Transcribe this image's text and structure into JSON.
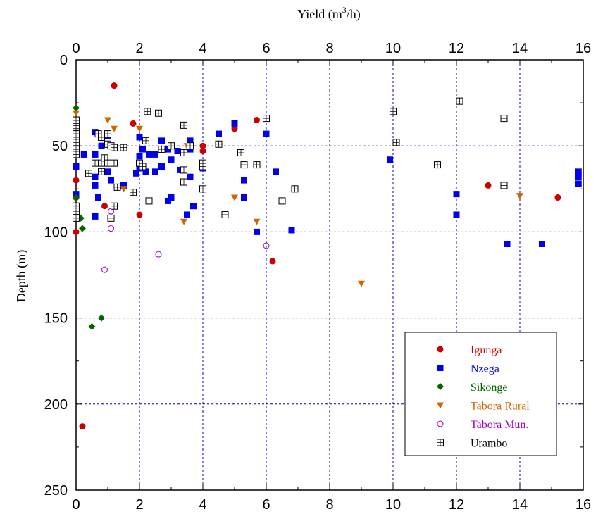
{
  "chart_data": {
    "type": "scatter",
    "title": "",
    "xlabel": "Yield (m",
    "xlabel_sup": "3",
    "xlabel_end": "/h)",
    "ylabel": "Depth (m)",
    "xlim": [
      0,
      16
    ],
    "ylim": [
      0,
      250
    ],
    "y_inverted": true,
    "x_ticks": [
      "0",
      "2",
      "4",
      "6",
      "8",
      "10",
      "12",
      "14",
      "16"
    ],
    "y_ticks": [
      "0",
      "50",
      "100",
      "150",
      "200",
      "250"
    ],
    "grid": true,
    "legend_position": "bottom-right",
    "series": [
      {
        "name": "Igunga",
        "color": "#cc0000",
        "marker": "circle-filled",
        "points": [
          [
            1.2,
            15
          ],
          [
            1.8,
            37
          ],
          [
            4,
            50
          ],
          [
            4,
            53
          ],
          [
            5,
            40
          ],
          [
            5.7,
            35
          ],
          [
            0,
            70
          ],
          [
            0,
            80
          ],
          [
            0,
            100
          ],
          [
            0.9,
            85
          ],
          [
            2,
            90
          ],
          [
            6.2,
            117
          ],
          [
            13,
            73
          ],
          [
            15.2,
            80
          ],
          [
            0.2,
            213
          ]
        ]
      },
      {
        "name": "Nzega",
        "color": "#0000ee",
        "marker": "square-filled",
        "points": [
          [
            0,
            38
          ],
          [
            0,
            62
          ],
          [
            0,
            78
          ],
          [
            0.25,
            55
          ],
          [
            0.6,
            42
          ],
          [
            0.6,
            55
          ],
          [
            0.6,
            68
          ],
          [
            0.6,
            73
          ],
          [
            0.6,
            91
          ],
          [
            0.7,
            80
          ],
          [
            0.8,
            50
          ],
          [
            0.9,
            58
          ],
          [
            1,
            44
          ],
          [
            1,
            65
          ],
          [
            1.1,
            70
          ],
          [
            1.5,
            73
          ],
          [
            1.9,
            66
          ],
          [
            2,
            45
          ],
          [
            2,
            56
          ],
          [
            2,
            63
          ],
          [
            2.1,
            52
          ],
          [
            2.2,
            65
          ],
          [
            2.3,
            55
          ],
          [
            2.5,
            55
          ],
          [
            2.5,
            65
          ],
          [
            2.7,
            47
          ],
          [
            2.7,
            62
          ],
          [
            2.9,
            52
          ],
          [
            2.9,
            82
          ],
          [
            3,
            58
          ],
          [
            3,
            80
          ],
          [
            3.2,
            53
          ],
          [
            3.3,
            64
          ],
          [
            3.5,
            90
          ],
          [
            3.6,
            47
          ],
          [
            3.6,
            52
          ],
          [
            3.6,
            68
          ],
          [
            3.7,
            85
          ],
          [
            4,
            63
          ],
          [
            4.5,
            43
          ],
          [
            5,
            37
          ],
          [
            5.3,
            70
          ],
          [
            5.3,
            80
          ],
          [
            5.7,
            100
          ],
          [
            6,
            43
          ],
          [
            6.3,
            65
          ],
          [
            6.8,
            99
          ],
          [
            9.9,
            58
          ],
          [
            12,
            78
          ],
          [
            12,
            90
          ],
          [
            13.6,
            107
          ],
          [
            14.7,
            107
          ],
          [
            15.85,
            65
          ],
          [
            15.85,
            68
          ],
          [
            15.85,
            72
          ]
        ]
      },
      {
        "name": "Sikonge",
        "color": "#006600",
        "marker": "diamond-filled",
        "points": [
          [
            0,
            28
          ],
          [
            0,
            80
          ],
          [
            0.15,
            92
          ],
          [
            0.2,
            98
          ],
          [
            0.5,
            155
          ],
          [
            0.8,
            150
          ]
        ]
      },
      {
        "name": "Tabora Rural",
        "color": "#cc6600",
        "marker": "triangle-down-filled",
        "points": [
          [
            0,
            31
          ],
          [
            1,
            35
          ],
          [
            1.2,
            40
          ],
          [
            1.5,
            75
          ],
          [
            2,
            40
          ],
          [
            3.4,
            94
          ],
          [
            3.5,
            50
          ],
          [
            5,
            80
          ],
          [
            5.7,
            94
          ],
          [
            9,
            130
          ],
          [
            14,
            79
          ]
        ]
      },
      {
        "name": "Tabora Mun.",
        "color": "#9900cc",
        "marker": "circle-open",
        "points": [
          [
            0.9,
            122
          ],
          [
            1.1,
            88
          ],
          [
            1.1,
            98
          ],
          [
            2.6,
            113
          ],
          [
            6,
            108
          ]
        ]
      },
      {
        "name": "Urambo",
        "color": "#000000",
        "marker": "square-crossed",
        "points": [
          [
            0,
            35
          ],
          [
            0,
            37
          ],
          [
            0,
            40
          ],
          [
            0,
            43
          ],
          [
            0,
            45
          ],
          [
            0,
            48
          ],
          [
            0,
            52
          ],
          [
            0,
            55
          ],
          [
            0,
            85
          ],
          [
            0,
            88
          ],
          [
            0,
            92
          ],
          [
            0.4,
            66
          ],
          [
            0.6,
            60
          ],
          [
            0.7,
            43
          ],
          [
            0.8,
            45
          ],
          [
            0.8,
            60
          ],
          [
            0.8,
            65
          ],
          [
            0.9,
            57
          ],
          [
            1,
            43
          ],
          [
            1,
            49
          ],
          [
            1,
            60
          ],
          [
            1.1,
            50
          ],
          [
            1.2,
            51
          ],
          [
            1.2,
            60
          ],
          [
            1.2,
            85
          ],
          [
            1.1,
            92
          ],
          [
            1.3,
            74
          ],
          [
            1.5,
            51
          ],
          [
            1.8,
            77
          ],
          [
            2,
            60
          ],
          [
            2.1,
            62
          ],
          [
            2.2,
            47
          ],
          [
            2.25,
            30
          ],
          [
            2.3,
            82
          ],
          [
            2.6,
            31
          ],
          [
            2.7,
            52
          ],
          [
            3,
            50
          ],
          [
            3.4,
            38
          ],
          [
            3.4,
            54
          ],
          [
            3.4,
            64
          ],
          [
            3.4,
            71
          ],
          [
            3.6,
            50
          ],
          [
            4,
            60
          ],
          [
            4,
            62
          ],
          [
            4,
            75
          ],
          [
            4.5,
            49
          ],
          [
            4.7,
            90
          ],
          [
            5.2,
            54
          ],
          [
            5.3,
            61
          ],
          [
            5.7,
            61
          ],
          [
            6,
            34
          ],
          [
            6.5,
            82
          ],
          [
            6.9,
            75
          ],
          [
            10,
            30
          ],
          [
            10.1,
            48
          ],
          [
            11.4,
            61
          ],
          [
            12.1,
            24
          ],
          [
            13.5,
            34
          ],
          [
            13.5,
            73
          ]
        ]
      }
    ]
  }
}
